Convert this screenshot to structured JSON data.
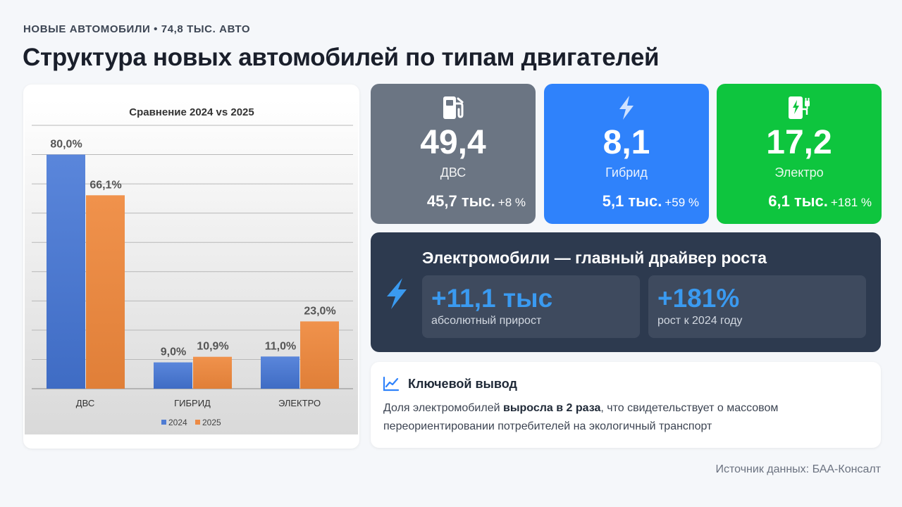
{
  "header": {
    "kicker": "НОВЫЕ АВТОМОБИЛИ • 74,8 ТЫС. АВТО",
    "title": "Структура новых автомобилей по типам двигателей"
  },
  "chart_data": {
    "type": "bar",
    "title": "Сравнение 2024 vs 2025",
    "categories": [
      "ДВС",
      "ГИБРИД",
      "ЭЛЕКТРО"
    ],
    "series": [
      {
        "name": "2024",
        "values": [
          80.0,
          9.0,
          11.0
        ],
        "labels": [
          "80,0%",
          "9,0%",
          "11,0%"
        ],
        "color": "#4f7cd3"
      },
      {
        "name": "2025",
        "values": [
          66.1,
          10.9,
          23.0
        ],
        "labels": [
          "66,1%",
          "10,9%",
          "23,0%"
        ],
        "color": "#ec8a45"
      }
    ],
    "ylim": [
      0,
      90
    ],
    "grid": true,
    "legend": "bottom"
  },
  "stats": [
    {
      "value": "49,4",
      "label": "ДВС",
      "abs": "45,7 тыс.",
      "change": "+8 %",
      "icon": "fuel-pump-icon",
      "color": "#6b7583"
    },
    {
      "value": "8,1",
      "label": "Гибрид",
      "abs": "5,1 тыс.",
      "change": "+59 %",
      "icon": "lightning-icon",
      "color": "#2f82fb"
    },
    {
      "value": "17,2",
      "label": "Электро",
      "abs": "6,1 тыс.",
      "change": "+181 %",
      "icon": "ev-charger-icon",
      "color": "#0ec53e"
    }
  ],
  "driver": {
    "title": "Электромобили — главный драйвер роста",
    "metrics": [
      {
        "value": "+11,1 тыс",
        "caption": "абсолютный прирост"
      },
      {
        "value": "+181%",
        "caption": "рост к 2024 году"
      }
    ]
  },
  "conclusion": {
    "title": "Ключевой вывод",
    "text_before": "Доля электромобилей ",
    "text_bold": "выросла в 2 раза",
    "text_after": ", что свидетельствует о массовом переориентировании потребителей на экологичный транспорт"
  },
  "source": "Источник данных: БАА-Консалт"
}
